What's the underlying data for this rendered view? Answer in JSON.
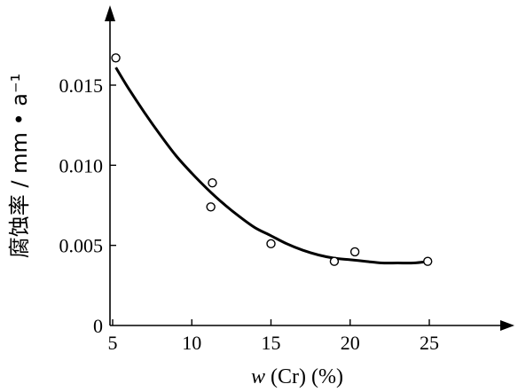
{
  "chart_data": {
    "type": "scatter",
    "title": "",
    "xlabel": "w (Cr) (%)",
    "ylabel": "腐蚀率 / mm • a⁻¹",
    "xlim": [
      5,
      28
    ],
    "ylim": [
      0,
      0.0195
    ],
    "x_ticks": [
      5,
      10,
      15,
      20,
      25
    ],
    "x_tick_labels": [
      "5",
      "10",
      "15",
      "20",
      "25"
    ],
    "y_ticks": [
      0,
      0.005,
      0.01,
      0.015
    ],
    "y_tick_labels": [
      "0",
      "0.005",
      "0.010",
      "0.015"
    ],
    "grid": false,
    "legend": "none",
    "series": [
      {
        "kind": "points",
        "marker": "open-circle",
        "x": [
          5.2,
          11.3,
          11.2,
          15.0,
          19.0,
          20.3,
          24.9
        ],
        "y": [
          0.0167,
          0.0089,
          0.0074,
          0.0051,
          0.004,
          0.0046,
          0.004
        ]
      },
      {
        "kind": "fitted-curve",
        "x": [
          5.2,
          6,
          7,
          8,
          9,
          10,
          11,
          12,
          13,
          14,
          15,
          16,
          17,
          18,
          19,
          20,
          21,
          22,
          23,
          24,
          25
        ],
        "y": [
          0.0161,
          0.0148,
          0.0133,
          0.0119,
          0.0106,
          0.0095,
          0.0085,
          0.0076,
          0.0068,
          0.0061,
          0.0056,
          0.0051,
          0.0047,
          0.0044,
          0.0042,
          0.0041,
          0.004,
          0.0039,
          0.0039,
          0.0039,
          0.004
        ]
      }
    ]
  }
}
